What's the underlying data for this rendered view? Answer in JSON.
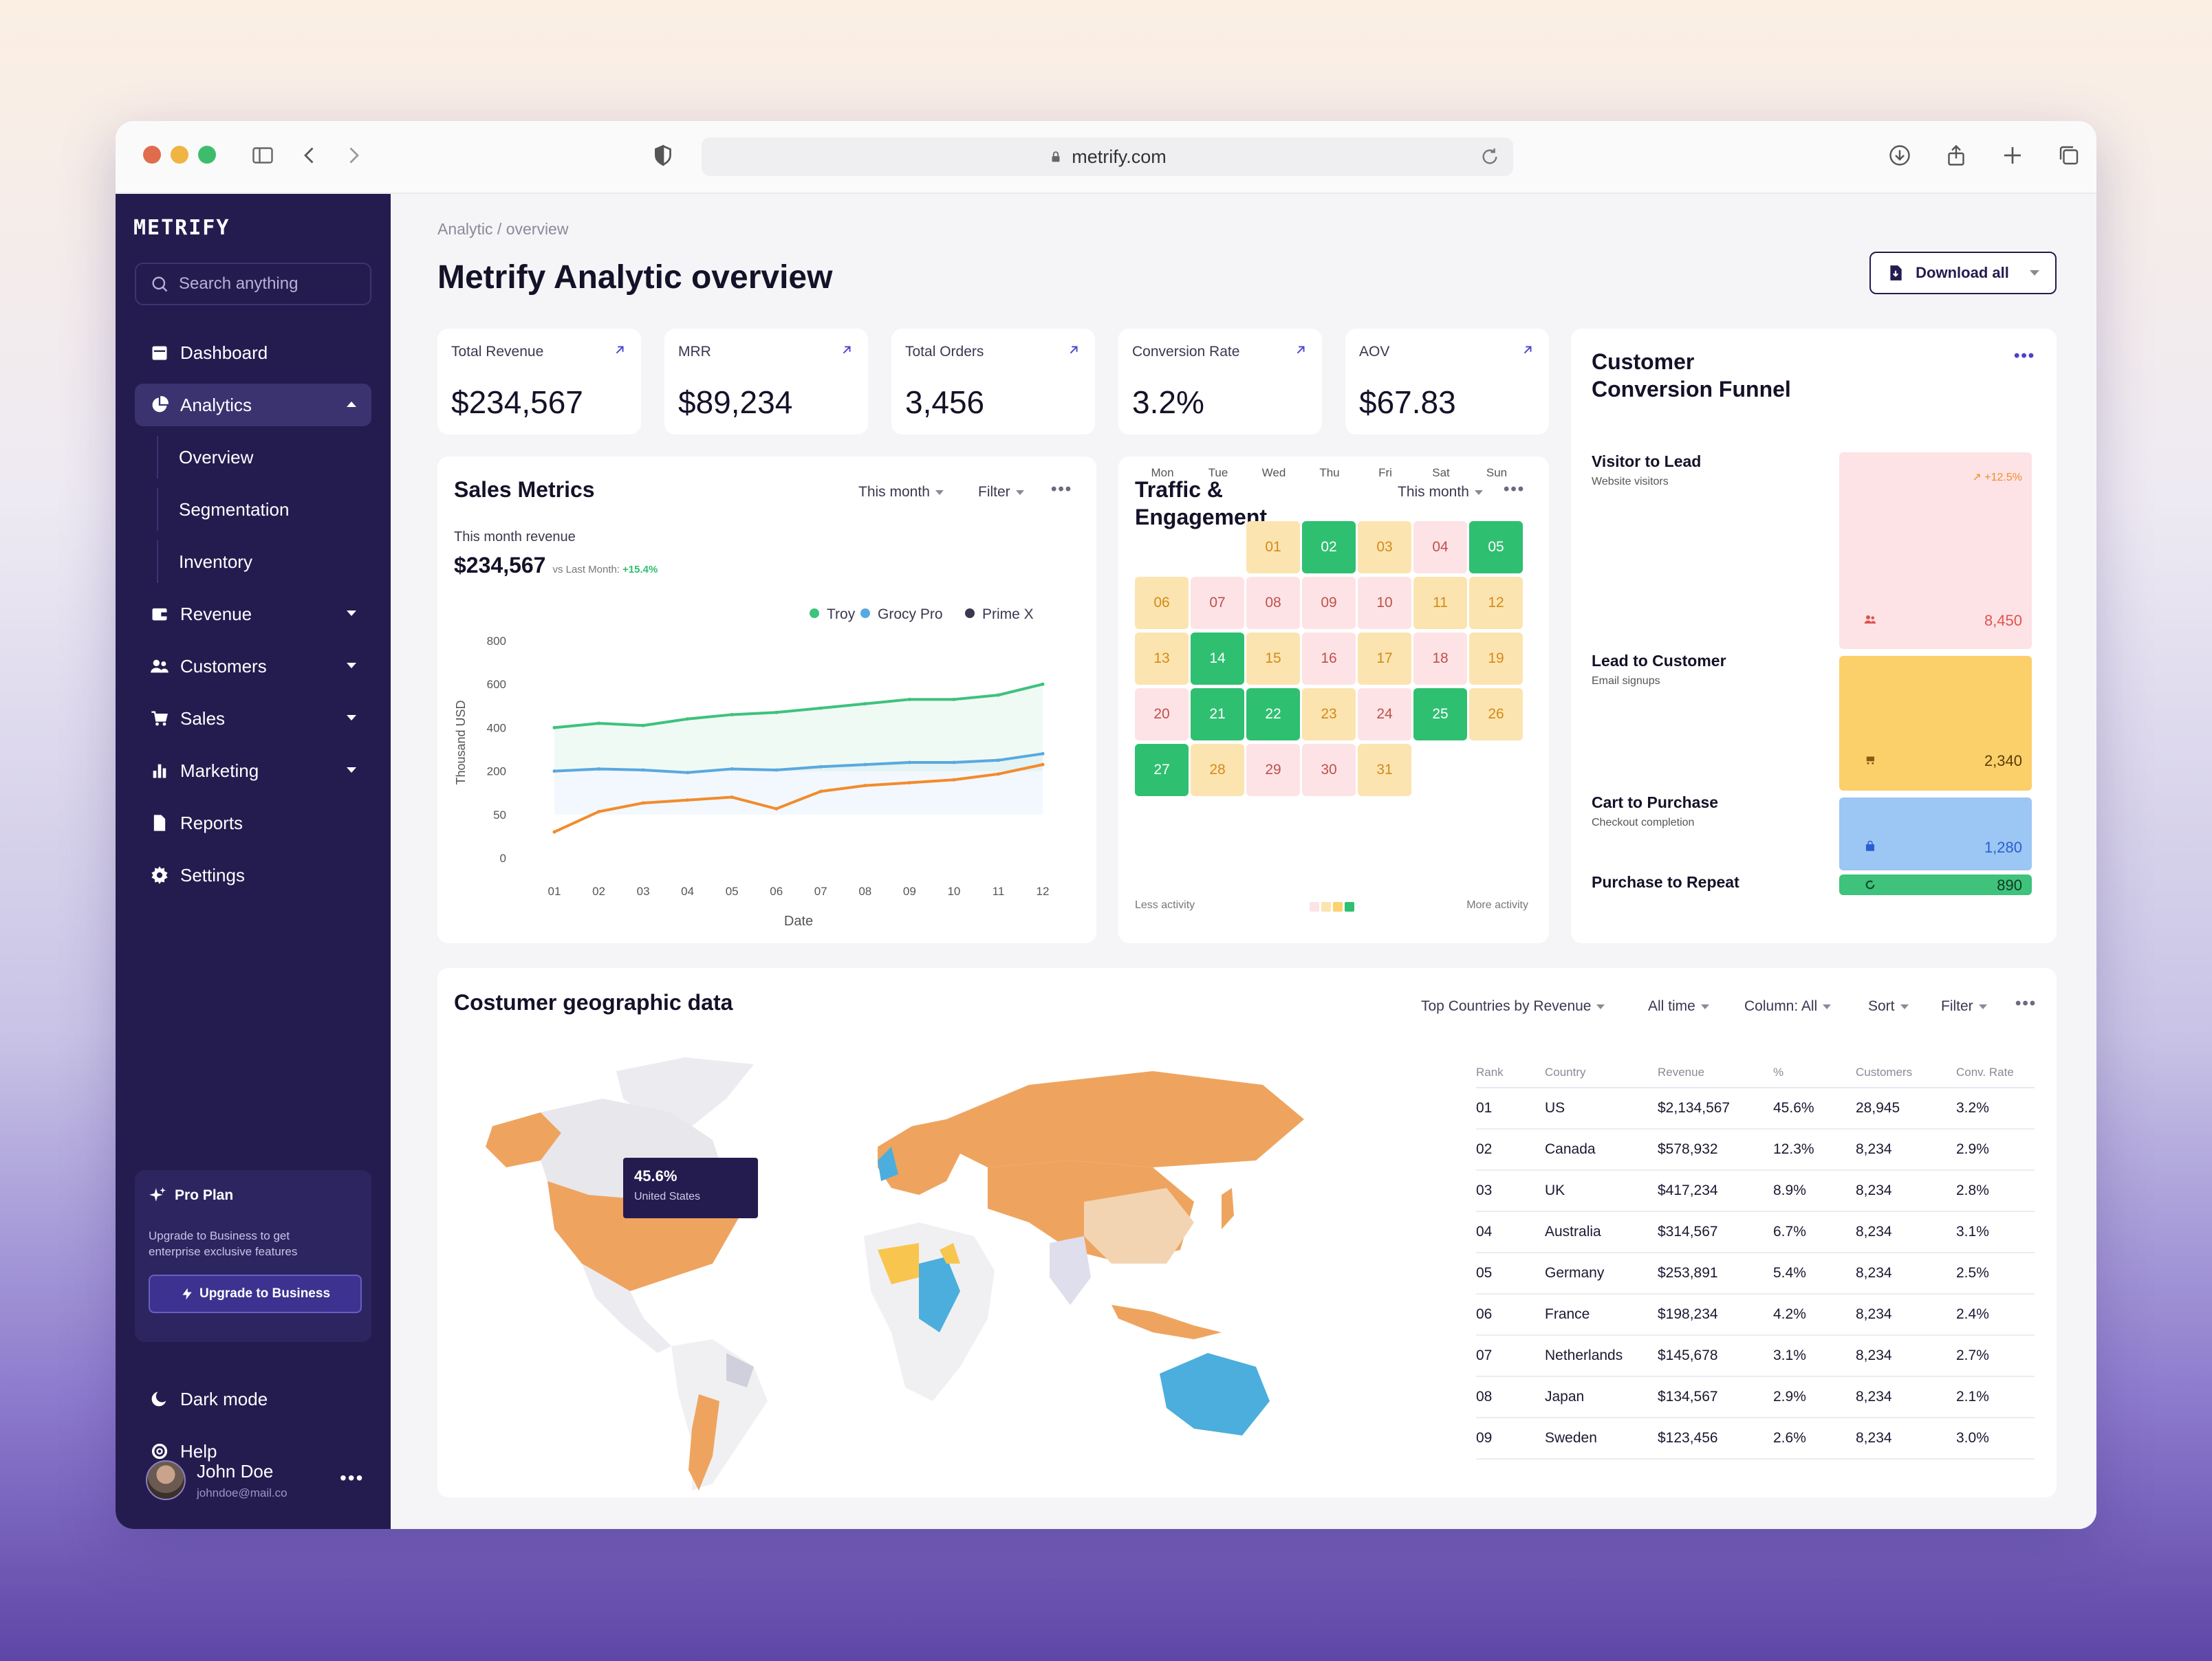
{
  "browser": {
    "url": "metrify.com"
  },
  "sidebar": {
    "logo": "METRIFY",
    "search_placeholder": "Search anything",
    "items": [
      {
        "label": "Dashboard",
        "icon": "calendar-icon"
      },
      {
        "label": "Analytics",
        "icon": "pie-chart-icon"
      },
      {
        "label": "Revenue",
        "icon": "wallet-icon"
      },
      {
        "label": "Customers",
        "icon": "users-icon"
      },
      {
        "label": "Sales",
        "icon": "cart-icon"
      },
      {
        "label": "Marketing",
        "icon": "bar-chart-icon"
      },
      {
        "label": "Reports",
        "icon": "document-icon"
      },
      {
        "label": "Settings",
        "icon": "gear-icon"
      }
    ],
    "analytics_sub": [
      "Overview",
      "Segmentation",
      "Inventory"
    ],
    "pro": {
      "title": "Pro Plan",
      "description": "Upgrade to Business to get enterprise exclusive features",
      "button": "Upgrade to Business"
    },
    "dark_mode": "Dark mode",
    "help": "Help",
    "user": {
      "name": "John Doe",
      "email": "johndoe@mail.co"
    }
  },
  "header": {
    "breadcrumb": "Analytic / overview",
    "title": "Metrify Analytic overview",
    "download": "Download all"
  },
  "kpis": [
    {
      "label": "Total Revenue",
      "value": "$234,567"
    },
    {
      "label": "MRR",
      "value": "$89,234"
    },
    {
      "label": "Total Orders",
      "value": "3,456"
    },
    {
      "label": "Conversion Rate",
      "value": "3.2%"
    },
    {
      "label": "AOV",
      "value": "$67.83"
    }
  ],
  "sales": {
    "title": "Sales Metrics",
    "period": "This month",
    "filter": "Filter",
    "revenue_label": "This month revenue",
    "revenue_value": "$234,567",
    "compare_label": "vs Last Month:",
    "compare_value": "+15.4%"
  },
  "chart_data": {
    "type": "line",
    "xlabel": "Date",
    "ylabel": "Thousand USD",
    "x": [
      "01",
      "02",
      "03",
      "04",
      "05",
      "06",
      "07",
      "08",
      "09",
      "10",
      "11",
      "12"
    ],
    "y_ticks": [
      "800",
      "600",
      "400",
      "200",
      "50",
      "0"
    ],
    "legend_position": "top-right",
    "series": [
      {
        "name": "Troy",
        "color": "#3ec27c",
        "values": [
          400,
          420,
          410,
          440,
          460,
          470,
          490,
          510,
          530,
          530,
          550,
          600
        ]
      },
      {
        "name": "Grocy Pro",
        "color": "#5aa8e0",
        "values": [
          200,
          210,
          205,
          195,
          210,
          205,
          220,
          230,
          240,
          240,
          250,
          280
        ]
      },
      {
        "name": "Prime X",
        "color": "#f28b2c",
        "values": [
          30,
          60,
          90,
          100,
          110,
          70,
          130,
          150,
          160,
          170,
          190,
          230
        ]
      }
    ]
  },
  "traffic": {
    "title": "Traffic & Engagement",
    "period": "This month",
    "days": [
      "Mon",
      "Tue",
      "Wed",
      "Thu",
      "Fri",
      "Sat",
      "Sun"
    ],
    "cells": [
      {
        "d": "01",
        "col": 2,
        "row": 0,
        "level": 1
      },
      {
        "d": "02",
        "col": 3,
        "row": 0,
        "level": 3
      },
      {
        "d": "03",
        "col": 4,
        "row": 0,
        "level": 1
      },
      {
        "d": "04",
        "col": 5,
        "row": 0,
        "level": 0
      },
      {
        "d": "05",
        "col": 6,
        "row": 0,
        "level": 3
      },
      {
        "d": "06",
        "col": 0,
        "row": 1,
        "level": 1
      },
      {
        "d": "07",
        "col": 1,
        "row": 1,
        "level": 0
      },
      {
        "d": "08",
        "col": 2,
        "row": 1,
        "level": 0
      },
      {
        "d": "09",
        "col": 3,
        "row": 1,
        "level": 0
      },
      {
        "d": "10",
        "col": 4,
        "row": 1,
        "level": 0
      },
      {
        "d": "11",
        "col": 5,
        "row": 1,
        "level": 1
      },
      {
        "d": "12",
        "col": 6,
        "row": 1,
        "level": 1
      },
      {
        "d": "13",
        "col": 0,
        "row": 2,
        "level": 1
      },
      {
        "d": "14",
        "col": 1,
        "row": 2,
        "level": 3
      },
      {
        "d": "15",
        "col": 2,
        "row": 2,
        "level": 1
      },
      {
        "d": "16",
        "col": 3,
        "row": 2,
        "level": 0
      },
      {
        "d": "17",
        "col": 4,
        "row": 2,
        "level": 1
      },
      {
        "d": "18",
        "col": 5,
        "row": 2,
        "level": 0
      },
      {
        "d": "19",
        "col": 6,
        "row": 2,
        "level": 1
      },
      {
        "d": "20",
        "col": 0,
        "row": 3,
        "level": 0
      },
      {
        "d": "21",
        "col": 1,
        "row": 3,
        "level": 3
      },
      {
        "d": "22",
        "col": 2,
        "row": 3,
        "level": 3
      },
      {
        "d": "23",
        "col": 3,
        "row": 3,
        "level": 1
      },
      {
        "d": "24",
        "col": 4,
        "row": 3,
        "level": 0
      },
      {
        "d": "25",
        "col": 5,
        "row": 3,
        "level": 3
      },
      {
        "d": "26",
        "col": 6,
        "row": 3,
        "level": 1
      },
      {
        "d": "27",
        "col": 0,
        "row": 4,
        "level": 3
      },
      {
        "d": "28",
        "col": 1,
        "row": 4,
        "level": 1
      },
      {
        "d": "29",
        "col": 2,
        "row": 4,
        "level": 0
      },
      {
        "d": "30",
        "col": 3,
        "row": 4,
        "level": 0
      },
      {
        "d": "31",
        "col": 4,
        "row": 4,
        "level": 1
      }
    ],
    "legend_less": "Less activity",
    "legend_more": "More activity"
  },
  "funnel": {
    "title": "Customer Conversion Funnel",
    "stages": [
      {
        "label": "Visitor to Lead",
        "sub": "Website visitors",
        "value": "8,450",
        "change": "+12.5%"
      },
      {
        "label": "Lead to Customer",
        "sub": "Email signups",
        "value": "2,340"
      },
      {
        "label": "Cart to Purchase",
        "sub": "Checkout completion",
        "value": "1,280"
      },
      {
        "label": "Purchase to Repeat",
        "sub": "",
        "value": "890"
      }
    ]
  },
  "geo": {
    "title": "Costumer geographic data",
    "controls": [
      "Top Countries by Revenue",
      "All time",
      "Column: All",
      "Sort",
      "Filter"
    ],
    "tooltip": {
      "value": "45.6%",
      "label": "United States"
    },
    "columns": [
      "Rank",
      "Country",
      "Revenue",
      "%",
      "Customers",
      "Conv. Rate"
    ],
    "rows": [
      [
        "01",
        "US",
        "$2,134,567",
        "45.6%",
        "28,945",
        "3.2%"
      ],
      [
        "02",
        "Canada",
        "$578,932",
        "12.3%",
        "8,234",
        "2.9%"
      ],
      [
        "03",
        "UK",
        "$417,234",
        "8.9%",
        "8,234",
        "2.8%"
      ],
      [
        "04",
        "Australia",
        "$314,567",
        "6.7%",
        "8,234",
        "3.1%"
      ],
      [
        "05",
        "Germany",
        "$253,891",
        "5.4%",
        "8,234",
        "2.5%"
      ],
      [
        "06",
        "France",
        "$198,234",
        "4.2%",
        "8,234",
        "2.4%"
      ],
      [
        "07",
        "Netherlands",
        "$145,678",
        "3.1%",
        "8,234",
        "2.7%"
      ],
      [
        "08",
        "Japan",
        "$134,567",
        "2.9%",
        "8,234",
        "2.1%"
      ],
      [
        "09",
        "Sweden",
        "$123,456",
        "2.6%",
        "8,234",
        "3.0%"
      ]
    ]
  },
  "colors": {
    "sidebar": "#241c4f",
    "accent_green": "#2fbf71",
    "accent_orange": "#f28b2c",
    "accent_blue": "#5aa8e0",
    "funnel_pink": "#fde3e6",
    "funnel_yellow": "#fbcf6a",
    "funnel_blue": "#9cc6f4",
    "funnel_green": "#3ec27c"
  }
}
